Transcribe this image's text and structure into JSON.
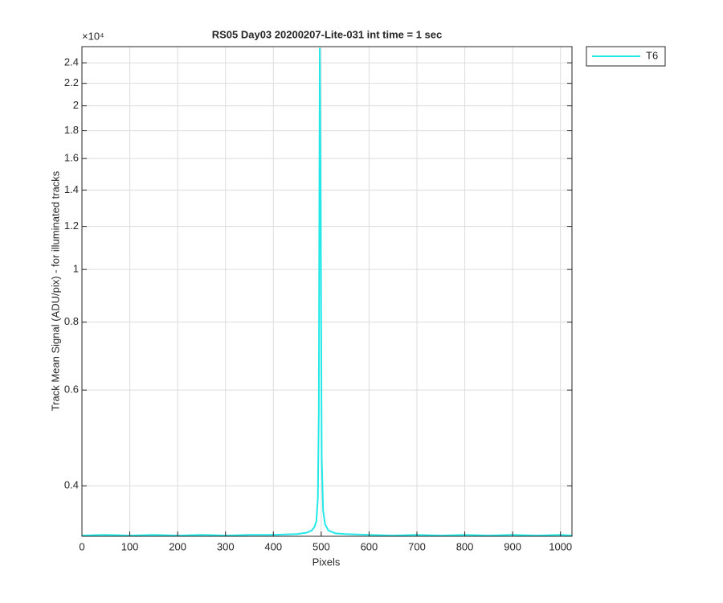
{
  "chart_data": {
    "type": "line",
    "title": "RS05 Day03 20200207-Lite-031 int time = 1 sec",
    "x_label": "Pixels",
    "y_label": "Track Mean Signal (ADU/pix) - for illuminated tracks",
    "y_exponent_label": "×10⁴",
    "x": [
      0,
      50,
      100,
      150,
      200,
      250,
      300,
      350,
      400,
      450,
      470,
      480,
      486,
      490,
      493,
      495,
      497,
      499,
      501,
      504,
      508,
      515,
      530,
      550,
      600,
      650,
      700,
      750,
      800,
      850,
      900,
      950,
      1000,
      1024
    ],
    "series": [
      {
        "name": "T6",
        "color": "#22e8e8",
        "values": [
          0.324,
          0.325,
          0.324,
          0.325,
          0.324,
          0.325,
          0.324,
          0.325,
          0.325,
          0.326,
          0.328,
          0.331,
          0.336,
          0.345,
          0.38,
          0.55,
          2.55,
          1.3,
          0.45,
          0.36,
          0.34,
          0.331,
          0.327,
          0.326,
          0.325,
          0.324,
          0.325,
          0.324,
          0.325,
          0.324,
          0.325,
          0.324,
          0.325,
          0.324
        ]
      }
    ],
    "xlim": [
      0,
      1024
    ],
    "ylim": [
      0.323,
      2.57
    ],
    "xticks": [
      0,
      100,
      200,
      300,
      400,
      500,
      600,
      700,
      800,
      900,
      1000
    ],
    "yticks": [
      0.4,
      0.6,
      0.8,
      1,
      1.2,
      1.4,
      1.6,
      1.8,
      2,
      2.2,
      2.4
    ],
    "y_log": true,
    "grid": true,
    "legend": "outside-top-right"
  }
}
